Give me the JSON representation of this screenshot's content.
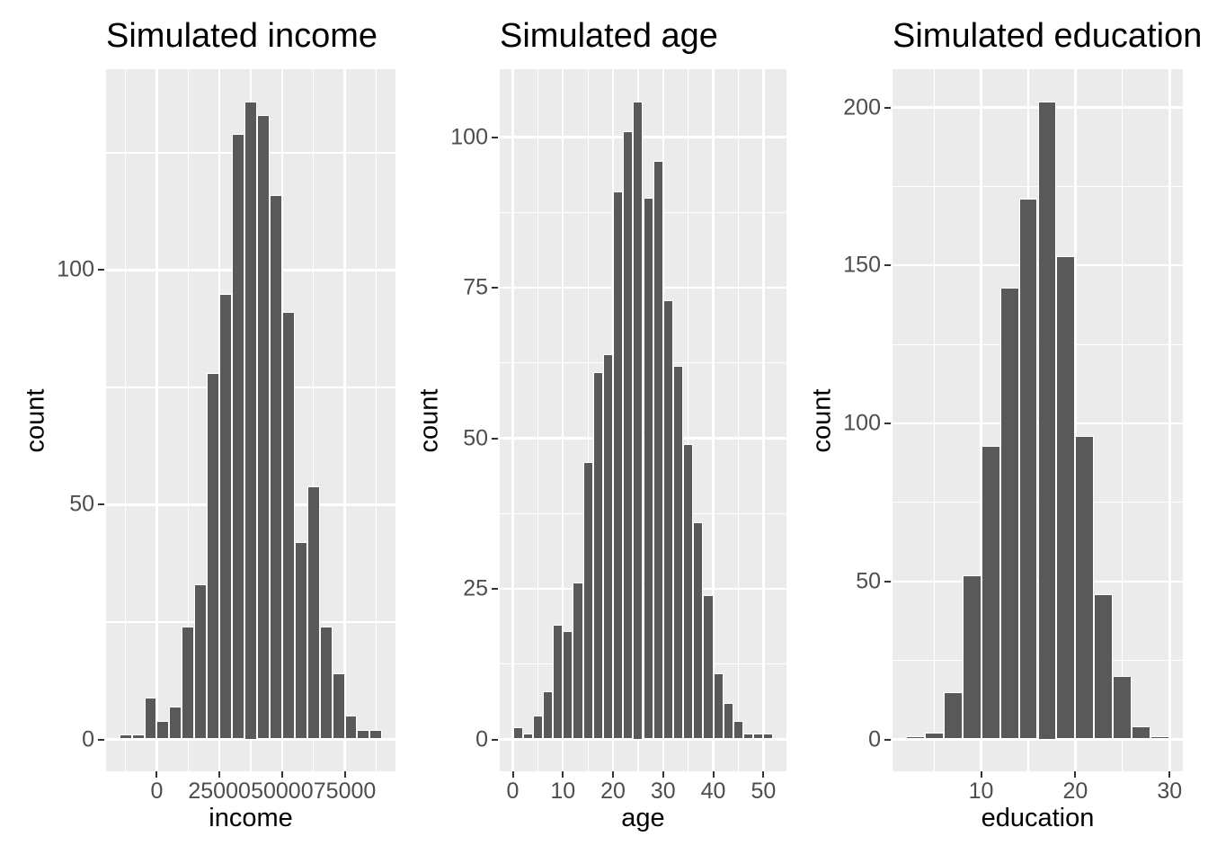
{
  "figure": {
    "background": "#FFFFFF"
  },
  "style": {
    "panel_background": "#EBEBEB",
    "grid_color": "#FFFFFF",
    "bar_fill": "#595959",
    "bar_stroke": "#FFFFFF",
    "tick_mark_color": "#333333",
    "tick_label_color": "#4D4D4D",
    "title_color": "#000000"
  },
  "chart_data": [
    {
      "type": "bar",
      "subtype": "histogram",
      "title": "Simulated income",
      "xlabel": "income",
      "ylabel": "count",
      "bin_start": -15000,
      "bin_width": 5000,
      "counts": [
        1,
        1,
        9,
        4,
        7,
        24,
        33,
        78,
        95,
        129,
        136,
        133,
        116,
        91,
        42,
        54,
        24,
        14,
        5,
        2,
        2
      ],
      "x_ticks": [
        0,
        25000,
        50000,
        75000
      ],
      "x_tick_labels": [
        "0",
        "25000",
        "50000",
        "75000"
      ],
      "x_minor": [
        -12500,
        12500,
        37500,
        62500,
        87500
      ],
      "y_ticks": [
        0,
        50,
        100
      ],
      "y_tick_labels": [
        "0",
        "50",
        "100"
      ],
      "y_minor": [
        25,
        75,
        125
      ],
      "x_domain": [
        -20250,
        95250
      ],
      "y_domain": [
        -6.8,
        142.8
      ],
      "grid": true,
      "legend": "none"
    },
    {
      "type": "bar",
      "subtype": "histogram",
      "title": "Simulated age",
      "xlabel": "age",
      "ylabel": "count",
      "bin_start": 0,
      "bin_width": 2,
      "counts": [
        2,
        1,
        4,
        8,
        19,
        18,
        26,
        46,
        61,
        64,
        91,
        101,
        106,
        90,
        96,
        73,
        62,
        49,
        36,
        24,
        11,
        6,
        3,
        1,
        1,
        1
      ],
      "x_ticks": [
        0,
        10,
        20,
        30,
        40,
        50
      ],
      "x_tick_labels": [
        "0",
        "10",
        "20",
        "30",
        "40",
        "50"
      ],
      "x_minor": [
        5,
        15,
        25,
        35,
        45
      ],
      "y_ticks": [
        0,
        25,
        50,
        75,
        100
      ],
      "y_tick_labels": [
        "0",
        "25",
        "50",
        "75",
        "100"
      ],
      "y_minor": [
        12.5,
        37.5,
        62.5,
        87.5
      ],
      "x_domain": [
        -2.6,
        54.6
      ],
      "y_domain": [
        -5.3,
        111.3
      ],
      "grid": true,
      "legend": "none"
    },
    {
      "type": "bar",
      "subtype": "histogram",
      "title": "Simulated education",
      "xlabel": "education",
      "ylabel": "count",
      "bin_start": 2,
      "bin_width": 2,
      "counts": [
        1,
        2,
        15,
        52,
        93,
        143,
        171,
        202,
        153,
        96,
        46,
        20,
        4,
        1
      ],
      "x_ticks": [
        10,
        20,
        30
      ],
      "x_tick_labels": [
        "10",
        "20",
        "30"
      ],
      "x_minor": [
        5,
        15,
        25
      ],
      "y_ticks": [
        0,
        50,
        100,
        150,
        200
      ],
      "y_tick_labels": [
        "0",
        "50",
        "100",
        "150",
        "200"
      ],
      "y_minor": [
        25,
        75,
        125,
        175
      ],
      "x_domain": [
        0.6,
        31.4
      ],
      "y_domain": [
        -10.1,
        212.1
      ],
      "grid": true,
      "legend": "none"
    }
  ]
}
